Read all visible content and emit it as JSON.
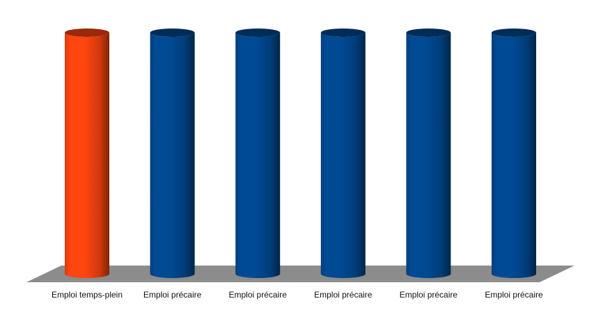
{
  "chart_data": {
    "type": "bar",
    "style": "3d-cylinder",
    "categories": [
      "Emploi temps-plein",
      "Emploi précaire",
      "Emploi précaire",
      "Emploi précaire",
      "Emploi précaire",
      "Emploi précaire"
    ],
    "values": [
      1,
      1,
      1,
      1,
      1,
      1
    ],
    "ylim": [
      0,
      1
    ],
    "title": "",
    "xlabel": "",
    "ylabel": "",
    "grid": false,
    "legend": "none",
    "bar_colors": [
      "#ff4510",
      "#004a94",
      "#004a94",
      "#004a94",
      "#004a94",
      "#004a94"
    ],
    "floor_color": "#8c8c8c"
  }
}
